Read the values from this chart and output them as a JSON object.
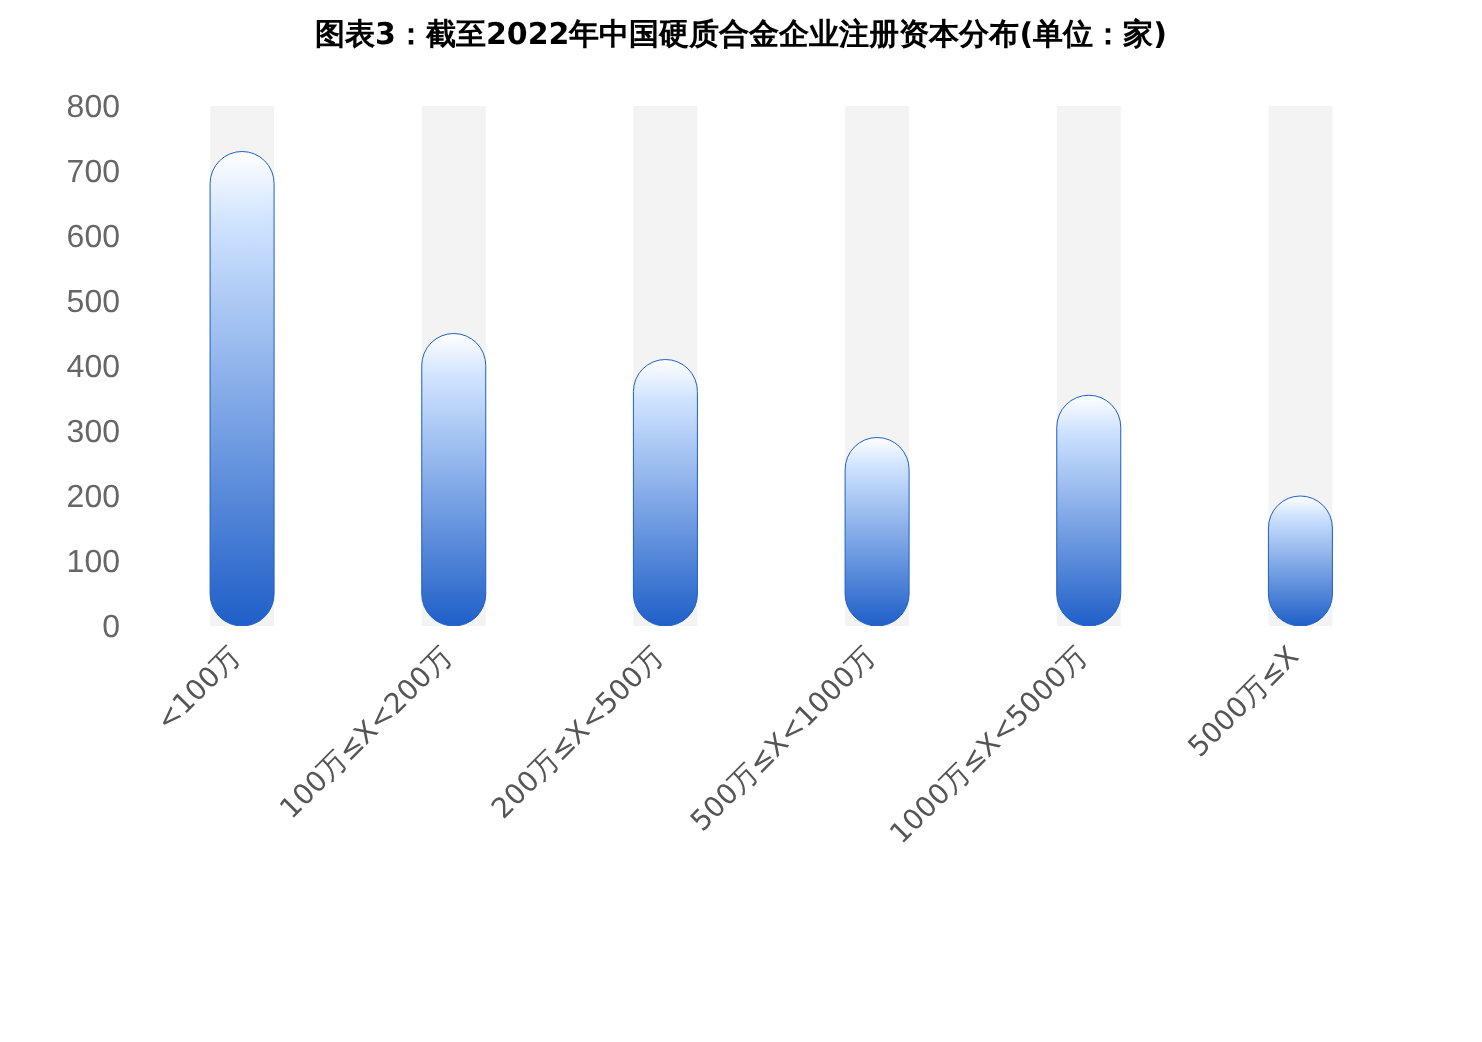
{
  "chart_data": {
    "type": "bar",
    "title": "图表3：截至2022年中国硬质合金企业注册资本分布(单位：家)",
    "categories": [
      "<100万",
      "100万≤X<200万",
      "200万≤X<500万",
      "500万≤X<1000万",
      "1000万≤X<5000万",
      "5000万≤X"
    ],
    "values": [
      730,
      450,
      410,
      290,
      355,
      200
    ],
    "color": "#1f5fc8",
    "ylim": [
      0,
      800
    ],
    "yticks": [
      0,
      100,
      200,
      300,
      400,
      500,
      600,
      700,
      800
    ],
    "grid": false,
    "legend": false
  }
}
